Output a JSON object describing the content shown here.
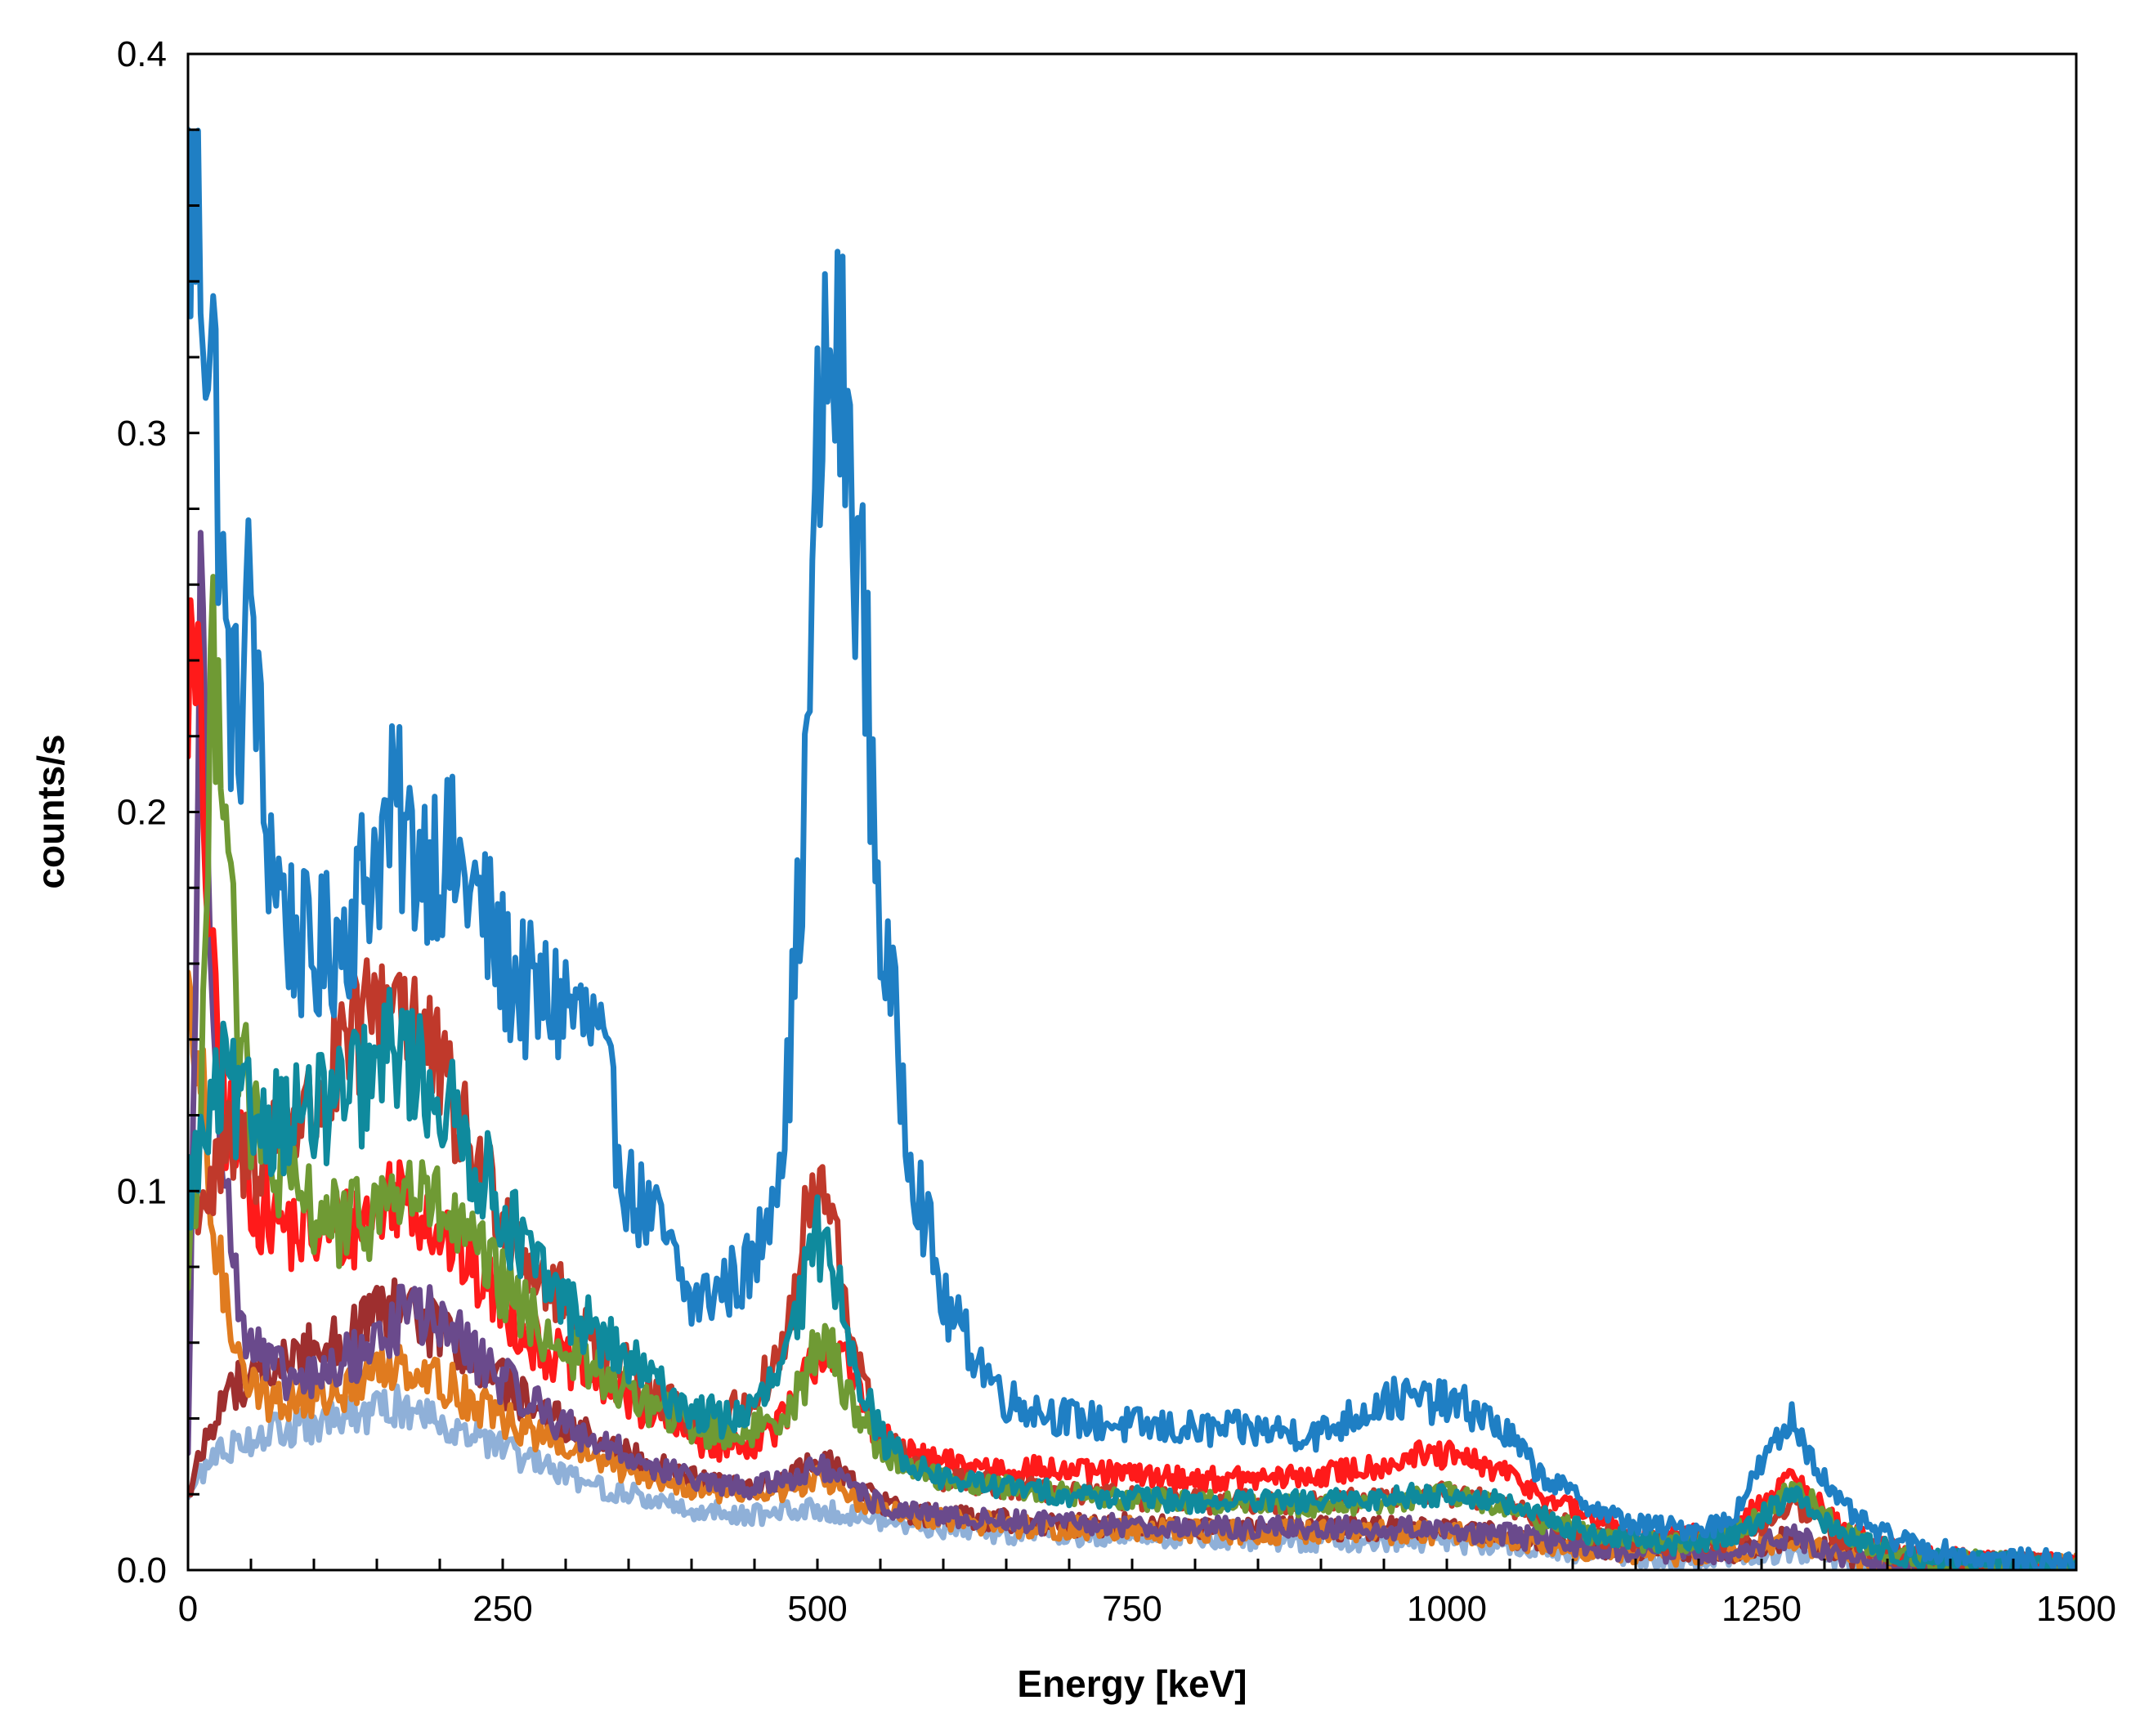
{
  "chart_data": {
    "type": "line",
    "title": "",
    "xlabel": "Energy [keV]",
    "ylabel": "counts/s",
    "xlim": [
      0,
      1500
    ],
    "ylim": [
      0,
      0.4
    ],
    "x_ticks": [
      0,
      250,
      500,
      750,
      1000,
      1250,
      1500
    ],
    "x_tick_labels": [
      "0",
      "250",
      "500",
      "750",
      "1000",
      "1250",
      "1500"
    ],
    "y_ticks": [
      0,
      0.1,
      0.2,
      0.3,
      0.4
    ],
    "y_tick_labels": [
      "0.0",
      "0.1",
      "0.2",
      "0.3",
      "0.4"
    ],
    "grid": false,
    "legend": "none",
    "x": [
      0,
      10,
      20,
      30,
      40,
      50,
      60,
      80,
      100,
      125,
      150,
      165,
      175,
      200,
      225,
      250,
      275,
      300,
      325,
      350,
      375,
      400,
      425,
      450,
      475,
      490,
      500,
      510,
      520,
      535,
      550,
      575,
      600,
      650,
      700,
      750,
      800,
      850,
      900,
      950,
      975,
      1000,
      1025,
      1050,
      1075,
      1100,
      1125,
      1150,
      1175,
      1200,
      1225,
      1250,
      1265,
      1275,
      1290,
      1310,
      1340,
      1375,
      1425,
      1500
    ],
    "series": [
      {
        "name": "series-blue",
        "color": "#1f7fc4",
        "values": [
          0.36,
          0.35,
          0.32,
          0.24,
          0.22,
          0.26,
          0.2,
          0.17,
          0.16,
          0.17,
          0.19,
          0.2,
          0.19,
          0.19,
          0.18,
          0.16,
          0.15,
          0.15,
          0.14,
          0.1,
          0.09,
          0.07,
          0.075,
          0.08,
          0.12,
          0.2,
          0.29,
          0.32,
          0.31,
          0.26,
          0.17,
          0.11,
          0.07,
          0.045,
          0.04,
          0.038,
          0.037,
          0.037,
          0.036,
          0.045,
          0.045,
          0.044,
          0.042,
          0.035,
          0.025,
          0.02,
          0.015,
          0.012,
          0.011,
          0.011,
          0.013,
          0.028,
          0.035,
          0.04,
          0.03,
          0.018,
          0.01,
          0.006,
          0.003,
          0.002
        ]
      },
      {
        "name": "series-red",
        "color": "#ff1a1a",
        "values": [
          0.24,
          0.22,
          0.15,
          0.12,
          0.11,
          0.1,
          0.095,
          0.09,
          0.088,
          0.09,
          0.095,
          0.1,
          0.1,
          0.09,
          0.08,
          0.07,
          0.06,
          0.055,
          0.05,
          0.045,
          0.04,
          0.035,
          0.033,
          0.034,
          0.04,
          0.05,
          0.058,
          0.06,
          0.055,
          0.045,
          0.035,
          0.03,
          0.028,
          0.027,
          0.026,
          0.025,
          0.024,
          0.024,
          0.025,
          0.028,
          0.03,
          0.03,
          0.028,
          0.025,
          0.02,
          0.016,
          0.013,
          0.01,
          0.009,
          0.009,
          0.01,
          0.018,
          0.022,
          0.024,
          0.02,
          0.012,
          0.007,
          0.004,
          0.002,
          0.001
        ]
      },
      {
        "name": "series-darkred",
        "color": "#c0392b",
        "values": [
          0.1,
          0.1,
          0.1,
          0.11,
          0.11,
          0.11,
          0.11,
          0.12,
          0.12,
          0.135,
          0.15,
          0.155,
          0.15,
          0.13,
          0.11,
          0.095,
          0.08,
          0.07,
          0.06,
          0.052,
          0.045,
          0.04,
          0.04,
          0.045,
          0.06,
          0.09,
          0.1,
          0.095,
          0.075,
          0.05,
          0.035,
          0.028,
          0.024,
          0.022,
          0.02,
          0.019,
          0.018,
          0.018,
          0.018,
          0.019,
          0.02,
          0.02,
          0.019,
          0.017,
          0.014,
          0.011,
          0.009,
          0.008,
          0.007,
          0.007,
          0.008,
          0.012,
          0.015,
          0.017,
          0.014,
          0.009,
          0.005,
          0.003,
          0.002,
          0.001
        ]
      },
      {
        "name": "series-teal",
        "color": "#0f8a9d",
        "values": [
          0.1,
          0.11,
          0.12,
          0.13,
          0.12,
          0.12,
          0.12,
          0.12,
          0.12,
          0.125,
          0.13,
          0.14,
          0.135,
          0.125,
          0.11,
          0.095,
          0.08,
          0.07,
          0.062,
          0.055,
          0.048,
          0.042,
          0.04,
          0.042,
          0.055,
          0.075,
          0.088,
          0.085,
          0.07,
          0.05,
          0.035,
          0.028,
          0.024,
          0.022,
          0.02,
          0.019,
          0.018,
          0.018,
          0.018,
          0.019,
          0.02,
          0.02,
          0.019,
          0.017,
          0.014,
          0.011,
          0.009,
          0.008,
          0.007,
          0.007,
          0.009,
          0.014,
          0.018,
          0.02,
          0.016,
          0.01,
          0.006,
          0.003,
          0.002,
          0.001
        ]
      },
      {
        "name": "series-green",
        "color": "#6f9a34",
        "values": [
          0.08,
          0.12,
          0.24,
          0.22,
          0.14,
          0.12,
          0.11,
          0.1,
          0.095,
          0.09,
          0.095,
          0.1,
          0.1,
          0.095,
          0.085,
          0.075,
          0.065,
          0.058,
          0.052,
          0.047,
          0.042,
          0.038,
          0.036,
          0.037,
          0.042,
          0.05,
          0.06,
          0.058,
          0.05,
          0.04,
          0.032,
          0.027,
          0.024,
          0.022,
          0.02,
          0.019,
          0.018,
          0.018,
          0.017,
          0.018,
          0.019,
          0.02,
          0.018,
          0.016,
          0.013,
          0.011,
          0.009,
          0.008,
          0.007,
          0.007,
          0.009,
          0.015,
          0.02,
          0.022,
          0.018,
          0.011,
          0.006,
          0.003,
          0.002,
          0.001
        ]
      },
      {
        "name": "series-purple",
        "color": "#6a4a8c",
        "values": [
          0.03,
          0.25,
          0.16,
          0.1,
          0.07,
          0.06,
          0.055,
          0.05,
          0.05,
          0.055,
          0.06,
          0.065,
          0.07,
          0.065,
          0.058,
          0.05,
          0.044,
          0.038,
          0.034,
          0.03,
          0.027,
          0.024,
          0.022,
          0.022,
          0.024,
          0.026,
          0.027,
          0.026,
          0.023,
          0.02,
          0.017,
          0.015,
          0.014,
          0.013,
          0.012,
          0.012,
          0.011,
          0.011,
          0.011,
          0.011,
          0.011,
          0.011,
          0.01,
          0.009,
          0.008,
          0.007,
          0.006,
          0.005,
          0.005,
          0.005,
          0.005,
          0.007,
          0.008,
          0.009,
          0.007,
          0.004,
          0.003,
          0.002,
          0.001,
          0.001
        ]
      },
      {
        "name": "series-orange",
        "color": "#e07b1f",
        "values": [
          0.14,
          0.13,
          0.09,
          0.07,
          0.06,
          0.05,
          0.045,
          0.045,
          0.045,
          0.048,
          0.052,
          0.055,
          0.055,
          0.05,
          0.045,
          0.04,
          0.036,
          0.032,
          0.029,
          0.026,
          0.024,
          0.022,
          0.02,
          0.02,
          0.021,
          0.023,
          0.024,
          0.023,
          0.021,
          0.018,
          0.016,
          0.014,
          0.013,
          0.012,
          0.011,
          0.011,
          0.01,
          0.01,
          0.01,
          0.01,
          0.01,
          0.01,
          0.009,
          0.008,
          0.007,
          0.006,
          0.005,
          0.005,
          0.004,
          0.004,
          0.005,
          0.006,
          0.007,
          0.007,
          0.006,
          0.004,
          0.002,
          0.001,
          0.001,
          0.001
        ]
      },
      {
        "name": "series-lightblue",
        "color": "#8fb0d8",
        "values": [
          0.02,
          0.025,
          0.03,
          0.032,
          0.034,
          0.035,
          0.036,
          0.037,
          0.038,
          0.04,
          0.042,
          0.043,
          0.043,
          0.04,
          0.036,
          0.032,
          0.028,
          0.025,
          0.022,
          0.02,
          0.018,
          0.016,
          0.015,
          0.015,
          0.015,
          0.016,
          0.016,
          0.016,
          0.015,
          0.014,
          0.013,
          0.012,
          0.011,
          0.01,
          0.009,
          0.009,
          0.009,
          0.008,
          0.008,
          0.008,
          0.008,
          0.008,
          0.007,
          0.007,
          0.006,
          0.005,
          0.004,
          0.004,
          0.003,
          0.003,
          0.003,
          0.004,
          0.005,
          0.005,
          0.004,
          0.003,
          0.002,
          0.001,
          0.001,
          0.0
        ]
      },
      {
        "name": "series-maroon",
        "color": "#9e2f2f",
        "values": [
          0.02,
          0.03,
          0.04,
          0.045,
          0.05,
          0.05,
          0.052,
          0.055,
          0.058,
          0.062,
          0.066,
          0.068,
          0.068,
          0.063,
          0.056,
          0.049,
          0.043,
          0.038,
          0.034,
          0.03,
          0.027,
          0.024,
          0.022,
          0.022,
          0.024,
          0.027,
          0.029,
          0.028,
          0.025,
          0.021,
          0.018,
          0.015,
          0.014,
          0.013,
          0.012,
          0.012,
          0.011,
          0.011,
          0.011,
          0.011,
          0.011,
          0.011,
          0.01,
          0.009,
          0.008,
          0.007,
          0.006,
          0.005,
          0.005,
          0.005,
          0.005,
          0.007,
          0.008,
          0.008,
          0.007,
          0.004,
          0.003,
          0.002,
          0.001,
          0.001
        ]
      }
    ]
  }
}
